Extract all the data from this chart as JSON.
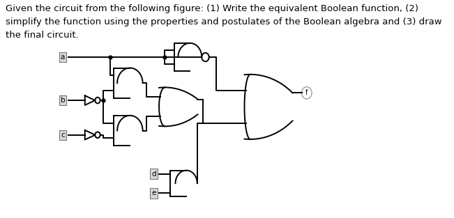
{
  "text_line1": "Given the circuit from the following figure: (1) Write the equivalent Boolean function, (2)",
  "text_line2": "simplify the function using the properties and postulates of the Boolean algebra and (3) draw",
  "text_line3": "the final circuit.",
  "bg_color": "#ffffff",
  "line_color": "#000000",
  "label_bg": "#d8d8d8",
  "font_size_text": 9.5,
  "fig_width": 6.51,
  "fig_height": 3.13
}
